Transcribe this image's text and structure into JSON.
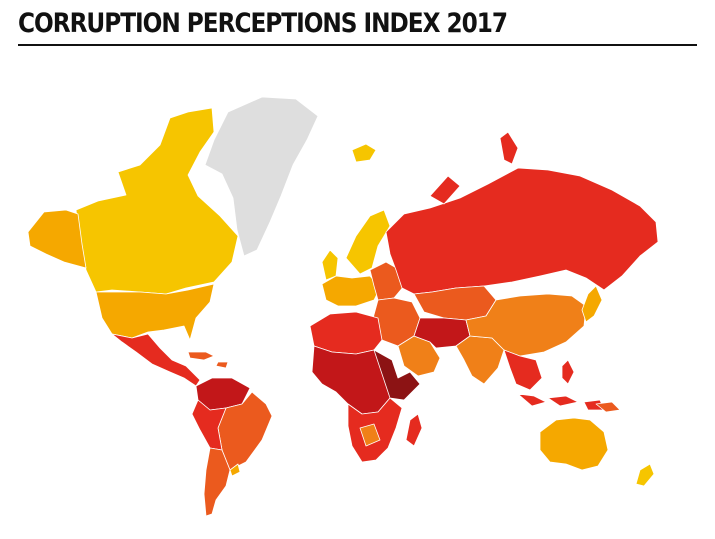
{
  "title": "CORRUPTION PERCEPTIONS INDEX 2017",
  "legend_colors": {
    "very_clean": "#f6c500",
    "clean": "#f5a800",
    "moderate": "#f08018",
    "high": "#eb5a1e",
    "very_high": "#e52b1f",
    "highly_corrupt": "#c21719",
    "most_corrupt": "#8c1314",
    "no_data": "#dedede"
  }
}
